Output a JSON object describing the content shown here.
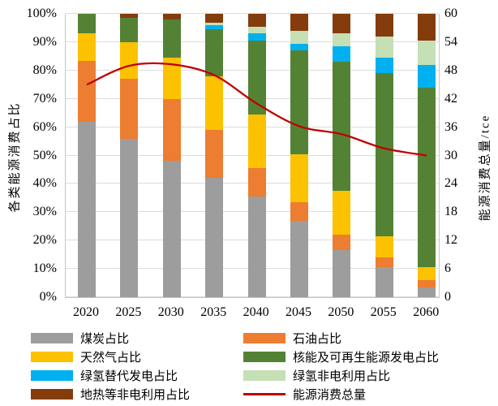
{
  "chart_data": {
    "type": "bar",
    "subtype": "stacked-percent-with-line",
    "categories": [
      "2020",
      "2025",
      "2030",
      "2035",
      "2040",
      "2045",
      "2050",
      "2055",
      "2060"
    ],
    "series": [
      {
        "name": "煤炭占比",
        "color": "#9d9d9d",
        "values": [
          62,
          56,
          48,
          42,
          35.5,
          27,
          16.5,
          10.5,
          3.5
        ]
      },
      {
        "name": "石油占比",
        "color": "#ed7d31",
        "values": [
          21.5,
          21,
          22,
          17,
          10,
          6.5,
          5.5,
          3.5,
          2.5
        ]
      },
      {
        "name": "天然气占比",
        "color": "#fcc200",
        "values": [
          9.5,
          13,
          14.5,
          19,
          19,
          17,
          15.5,
          7.5,
          4.5
        ]
      },
      {
        "name": "核能及可再生能源发电占比",
        "color": "#548235",
        "values": [
          7,
          8.5,
          13.5,
          16.5,
          26,
          36.5,
          45.5,
          57.5,
          63.5
        ]
      },
      {
        "name": "绿氢替代发电占比",
        "color": "#00b0f0",
        "values": [
          0,
          0,
          0,
          1.5,
          2.5,
          2.5,
          5.5,
          5.5,
          8
        ]
      },
      {
        "name": "绿氢非电利用占比",
        "color": "#c5e0b4",
        "values": [
          0,
          0,
          0,
          1,
          2.5,
          4.5,
          4.5,
          7.5,
          8.5
        ]
      },
      {
        "name": "地热等非电利用占比",
        "color": "#843c0c",
        "values": [
          0,
          1.5,
          2,
          3,
          4.5,
          6,
          7,
          8,
          9.5
        ]
      }
    ],
    "line_series": {
      "name": "能源消费总量",
      "color": "#c00000",
      "values": [
        45,
        49,
        49.3,
        47,
        41,
        36.2,
        34.5,
        31.5,
        30
      ]
    },
    "left_axis": {
      "label": "各类能源消费占比",
      "min": 0,
      "max": 100,
      "step": 10,
      "ticks": [
        "0%",
        "10%",
        "20%",
        "30%",
        "40%",
        "50%",
        "60%",
        "70%",
        "80%",
        "90%",
        "100%"
      ]
    },
    "right_axis": {
      "label": "能源消费总量/tce",
      "min": 0,
      "max": 60,
      "step": 6,
      "ticks": [
        "0",
        "6",
        "12",
        "18",
        "24",
        "30",
        "36",
        "42",
        "48",
        "54",
        "60"
      ]
    },
    "legend": [
      {
        "label": "煤炭占比",
        "color": "#9d9d9d",
        "shape": "rect"
      },
      {
        "label": "石油占比",
        "color": "#ed7d31",
        "shape": "rect"
      },
      {
        "label": "天然气占比",
        "color": "#fcc200",
        "shape": "rect"
      },
      {
        "label": "核能及可再生能源发电占比",
        "color": "#548235",
        "shape": "rect"
      },
      {
        "label": "绿氢替代发电占比",
        "color": "#00b0f0",
        "shape": "rect"
      },
      {
        "label": "绿氢非电利用占比",
        "color": "#c5e0b4",
        "shape": "rect"
      },
      {
        "label": "地热等非电利用占比",
        "color": "#843c0c",
        "shape": "rect"
      },
      {
        "label": "能源消费总量",
        "color": "#c00000",
        "shape": "line"
      }
    ],
    "grid": true,
    "legend_position": "bottom"
  }
}
